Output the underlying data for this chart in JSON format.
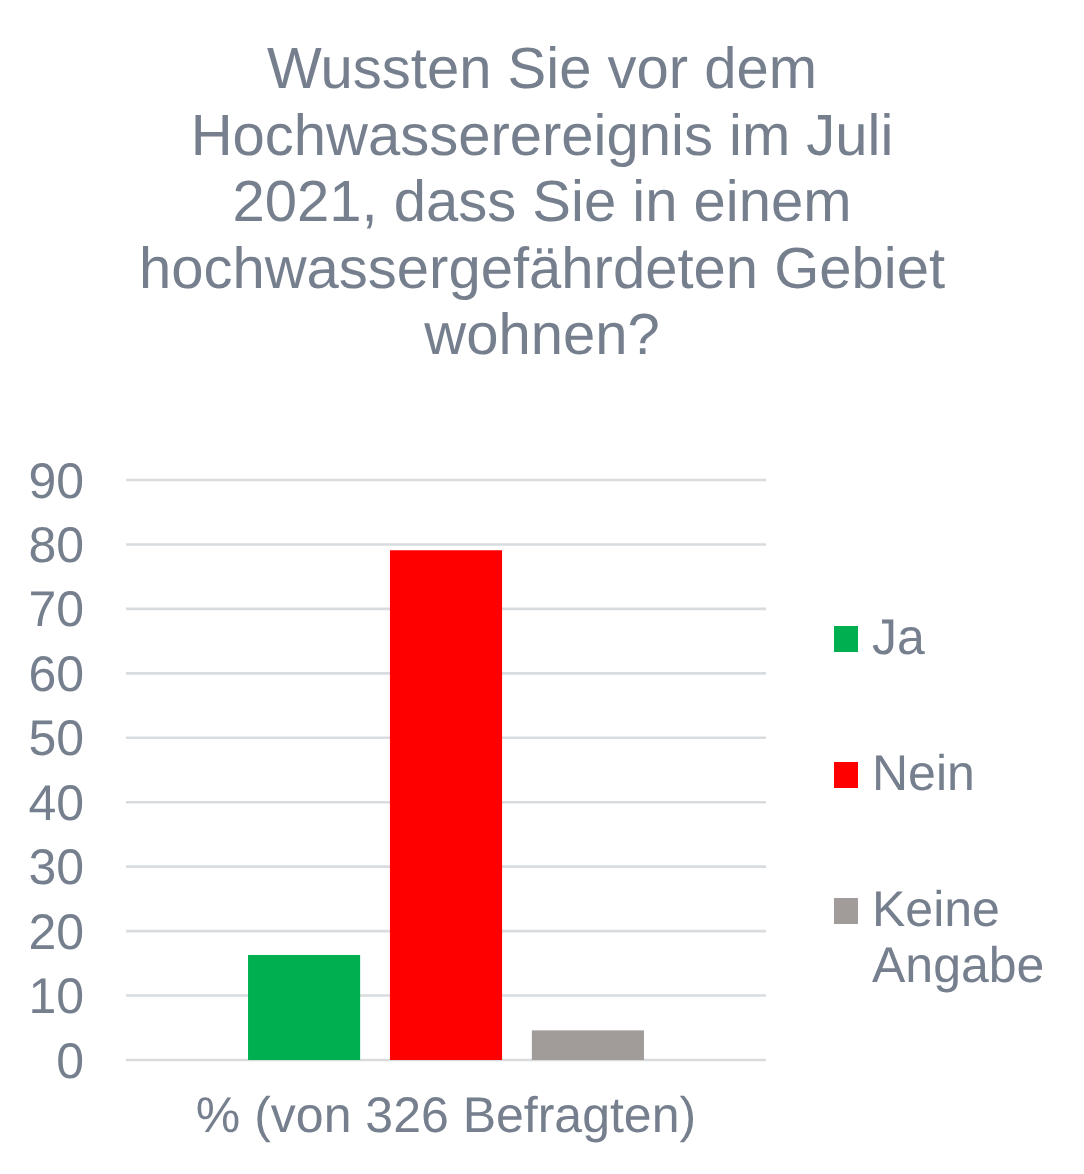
{
  "chart_data": {
    "type": "bar",
    "title": "Wussten Sie vor dem Hochwasserereignis im Juli 2021, dass Sie in einem hochwassergefährdeten Gebiet wohnen?",
    "xlabel": "% (von 326 Befragten)",
    "categories": [
      null,
      null,
      null
    ],
    "series": [
      {
        "name": "Ja",
        "color": "#00b050",
        "values": [
          16.3,
          null,
          null
        ]
      },
      {
        "name": "Nein",
        "color": "#ff0000",
        "values": [
          null,
          79.1,
          null
        ]
      },
      {
        "name": "Keine Angabe",
        "color": "#a19c99",
        "values": [
          null,
          null,
          4.6
        ]
      }
    ],
    "stacked": true,
    "ylim": [
      0,
      90
    ],
    "yticks": [
      0,
      10,
      20,
      30,
      40,
      50,
      60,
      70,
      80,
      90
    ],
    "grid": "y",
    "legend": "right",
    "tick_labels": "y"
  }
}
